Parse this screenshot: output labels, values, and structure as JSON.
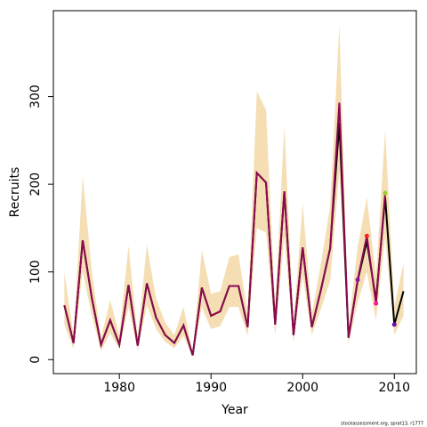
{
  "chart_data": {
    "type": "line",
    "xlabel": "Year",
    "ylabel": "Recruits",
    "footnote": "stockassessment.org, sprat13, r1777",
    "x": [
      1974,
      1975,
      1976,
      1977,
      1978,
      1979,
      1980,
      1981,
      1982,
      1983,
      1984,
      1985,
      1986,
      1987,
      1988,
      1989,
      1990,
      1991,
      1992,
      1993,
      1994,
      1995,
      1996,
      1997,
      1998,
      1999,
      2000,
      2001,
      2002,
      2003,
      2004,
      2005,
      2006,
      2007,
      2008,
      2009,
      2010,
      2011
    ],
    "band": {
      "color": "#f5deb3",
      "lower": [
        40,
        12,
        100,
        50,
        10,
        30,
        12,
        60,
        10,
        62,
        35,
        20,
        13,
        27,
        3,
        60,
        35,
        38,
        60,
        60,
        27,
        150,
        145,
        28,
        140,
        20,
        95,
        28,
        58,
        90,
        215,
        18,
        65,
        100,
        45,
        140,
        28,
        50
      ],
      "upper": [
        100,
        28,
        210,
        100,
        25,
        68,
        28,
        130,
        25,
        131,
        70,
        42,
        28,
        60,
        8,
        125,
        75,
        78,
        117,
        120,
        52,
        306,
        285,
        60,
        267,
        42,
        178,
        52,
        110,
        175,
        382,
        38,
        128,
        185,
        95,
        262,
        60,
        110
      ]
    },
    "series": [
      {
        "color": "#000000",
        "values": [
          62,
          19,
          136,
          70,
          17,
          45,
          17,
          85,
          16,
          87,
          48,
          28,
          19,
          39,
          5,
          82,
          50,
          55,
          84,
          84,
          37,
          213,
          202,
          40,
          192,
          28,
          128,
          37,
          80,
          127,
          270,
          25,
          90,
          135,
          68,
          185,
          40,
          78
        ]
      },
      {
        "color": "#8b0a50",
        "values": [
          62,
          19,
          136,
          70,
          17,
          45,
          17,
          85,
          16,
          87,
          48,
          28,
          19,
          39,
          5,
          82,
          50,
          55,
          84,
          84,
          37,
          213,
          202,
          40,
          192,
          28,
          128,
          37,
          80,
          127,
          293,
          25,
          91,
          141,
          64,
          190,
          null,
          null
        ]
      }
    ],
    "points": {
      "x": [
        2006,
        2007,
        2008,
        2009,
        2010
      ],
      "values": [
        91,
        141,
        64,
        190,
        40
      ],
      "colors": [
        "#8b1a9b",
        "#ff2020",
        "#ff1493",
        "#9acd32",
        "#6a0dad"
      ]
    },
    "xlim": [
      1972.8,
      2012.4
    ],
    "ylim": [
      -16,
      398
    ],
    "xticks": [
      1980,
      1990,
      2000,
      2010
    ],
    "yticks": [
      0,
      100,
      200,
      300
    ]
  }
}
